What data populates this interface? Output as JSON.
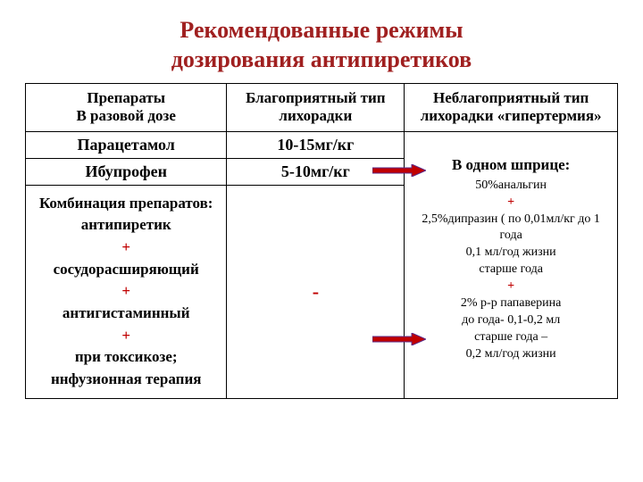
{
  "title_line1": "Рекомендованные  режимы",
  "title_line2": "дозирования  антипиретиков",
  "title_color": "#a02020",
  "table": {
    "header": {
      "col1_l1": "Препараты",
      "col1_l2": "В  разовой дозе",
      "col2": "Благоприятный тип лихорадки",
      "col3": "Неблагоприятный  тип лихорадки «гипертермия»"
    },
    "row1": {
      "drug": "Парацетамол",
      "dose": "10-15мг/кг"
    },
    "row2": {
      "drug": "Ибупрофен",
      "dose": "5-10мг/кг"
    },
    "combo": {
      "l1": "Комбинация препаратов:",
      "l2": "антипиретик",
      "l3": "+",
      "l4": "сосудорасширяющий",
      "l5": "+",
      "l6": "антигистаминный",
      "l7": "+",
      "l8": "при  токсикозе;",
      "l9": "ннфузионная  терапия"
    },
    "middle_dash": "-",
    "dash_color": "#c00000",
    "right": {
      "lead": "В  одном  шприце:",
      "r1": "50%анальгин",
      "r2": "+",
      "r3": "2,5%дипразин ( по 0,01мл/кг до 1 года",
      "r4": "0,1 мл/год жизни",
      "r5": "старше года",
      "r6": "+",
      "r7": "2% р-р папаверина",
      "r8": "до года- 0,1-0,2 мл",
      "r9": "старше  года –",
      "r10": "0,2 мл/год жизни"
    }
  },
  "arrow_fill": "#c00000",
  "arrow_stroke": "#5b2b8a",
  "col_widths": [
    "34%",
    "30%",
    "36%"
  ]
}
